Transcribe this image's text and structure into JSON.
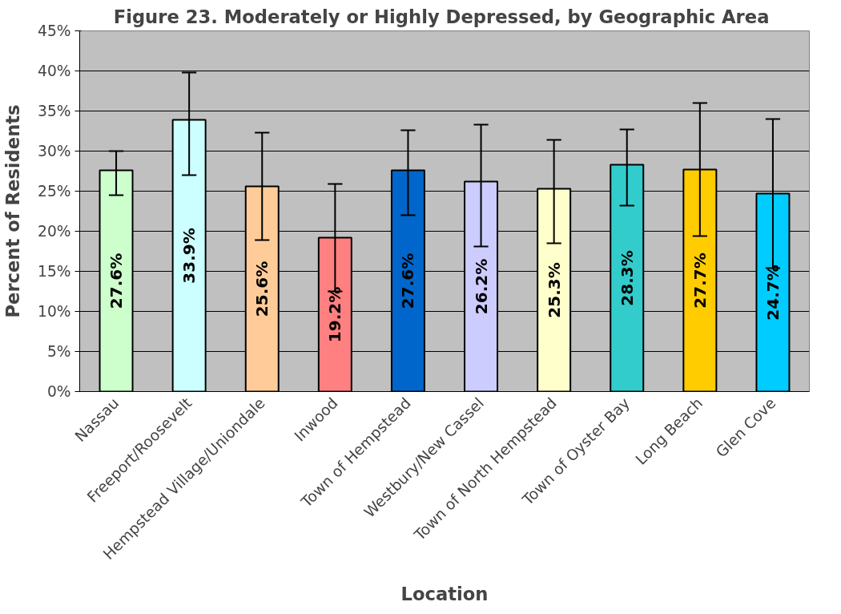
{
  "chart_data": {
    "type": "bar",
    "title": "Figure 23.  Moderately or Highly Depressed, by Geographic Area",
    "xlabel": "Location",
    "ylabel": "Percent of Residents",
    "categories": [
      "Nassau",
      "Freeport/Roosevelt",
      "Hempstead Village/Uniondale",
      "Inwood",
      "Town of Hempstead",
      "Westbury/New Cassel",
      "Town of North Hempstead",
      "Town of Oyster Bay",
      "Long Beach",
      "Glen Cove"
    ],
    "values": [
      27.6,
      33.9,
      25.6,
      19.2,
      27.6,
      26.2,
      25.3,
      28.3,
      27.7,
      24.7
    ],
    "colors": [
      "#ccffcc",
      "#ccffff",
      "#ffcc99",
      "#ff8080",
      "#0066cc",
      "#ccccff",
      "#ffffcc",
      "#33cccc",
      "#ffcc00",
      "#00ccff"
    ],
    "value_labels": [
      "27.6%",
      "33.9%",
      "25.6%",
      "19.2%",
      "27.6%",
      "26.2%",
      "25.3%",
      "28.3%",
      "27.7%",
      "24.7%"
    ],
    "errors": [
      [
        24.5,
        30.0
      ],
      [
        27.0,
        39.8
      ],
      [
        18.9,
        32.3
      ],
      [
        12.5,
        25.9
      ],
      [
        22.0,
        32.6
      ],
      [
        18.1,
        33.3
      ],
      [
        18.5,
        31.4
      ],
      [
        23.2,
        32.7
      ],
      [
        19.4,
        36.0
      ],
      [
        15.4,
        34.0
      ]
    ],
    "ylim": [
      0,
      45
    ],
    "yticks": [
      {
        "value": 0,
        "label": "0%"
      },
      {
        "value": 5,
        "label": "5%"
      },
      {
        "value": 10,
        "label": "10%"
      },
      {
        "value": 15,
        "label": "15%"
      },
      {
        "value": 20,
        "label": "20%"
      },
      {
        "value": 25,
        "label": "25%"
      },
      {
        "value": 30,
        "label": "30%"
      },
      {
        "value": 35,
        "label": "35%"
      },
      {
        "value": 40,
        "label": "40%"
      },
      {
        "value": 45,
        "label": "45%"
      }
    ],
    "grid": "y"
  }
}
